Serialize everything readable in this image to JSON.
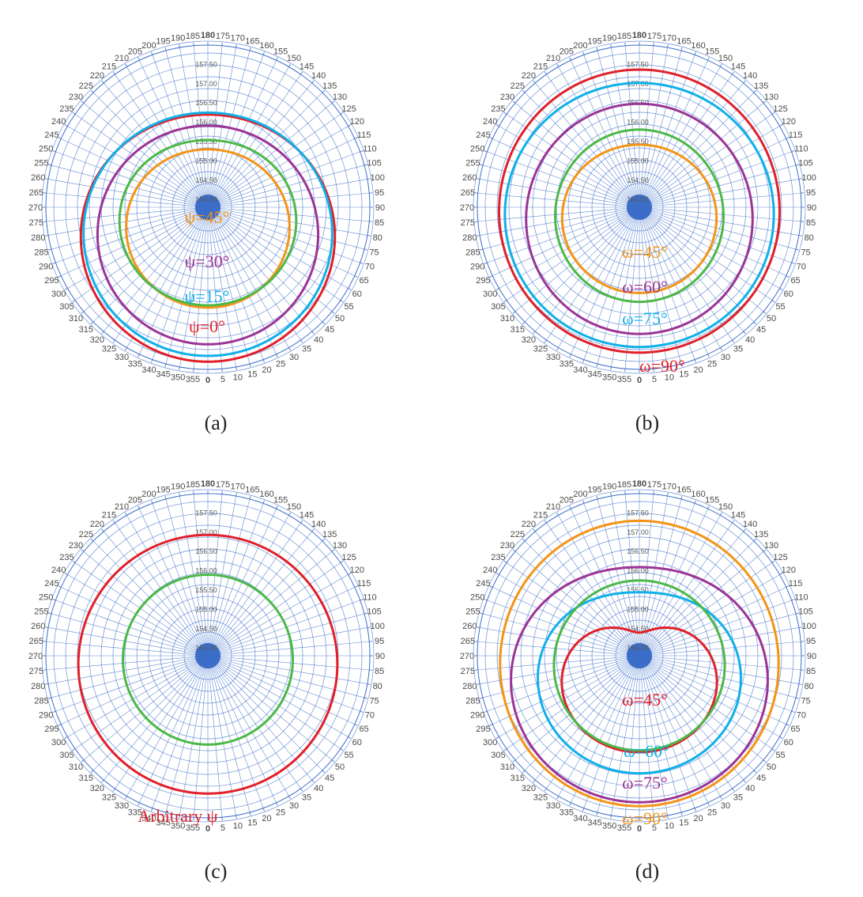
{
  "theta_ticks": [
    "0",
    "5",
    "10",
    "15",
    "20",
    "25",
    "30",
    "35",
    "40",
    "45",
    "50",
    "55",
    "60",
    "65",
    "70",
    "75",
    "80",
    "85",
    "90",
    "95",
    "100",
    "105",
    "110",
    "115",
    "120",
    "125",
    "130",
    "135",
    "140",
    "145",
    "150",
    "155",
    "160",
    "165",
    "170",
    "175",
    "180",
    "185",
    "190",
    "195",
    "200",
    "205",
    "210",
    "215",
    "220",
    "225",
    "230",
    "235",
    "240",
    "245",
    "250",
    "255",
    "260",
    "265",
    "270",
    "275",
    "280",
    "285",
    "290",
    "295",
    "300",
    "305",
    "310",
    "315",
    "320",
    "325",
    "330",
    "335",
    "340",
    "345",
    "350",
    "355"
  ],
  "radial_ticks": [
    "154.00",
    "154.50",
    "155.00",
    "155.50",
    "156.00",
    "156.50",
    "157.00",
    "157.50"
  ],
  "colors": {
    "red": "#e0202a",
    "cyan": "#10b0e8",
    "purple": "#9b3496",
    "orange": "#f39417",
    "green": "#4cb848",
    "grid": "#3c6ec8"
  },
  "chart_data": [
    {
      "panel": "(a)",
      "type": "polar-line",
      "series": [
        {
          "name": "ψ=0°",
          "color": "#e0202a",
          "r0": 157.0,
          "a": 0.8,
          "cx": 0.0
        },
        {
          "name": "ψ=15°",
          "color": "#10b0e8",
          "r0": 156.95,
          "a": 0.7,
          "cx": 0.0
        },
        {
          "name": "ψ=30°",
          "color": "#9b3496",
          "r0": 156.6,
          "a": 0.72,
          "cx": 0.1
        },
        {
          "name": "ψ=45°",
          "color": "#f39417",
          "r0": 155.85,
          "a": 0.55,
          "cx": 0.0
        },
        {
          "name": "",
          "color": "#4cb848",
          "r0": 156.0,
          "a": 0.4,
          "cx": -0.2
        }
      ],
      "annotations": [
        {
          "text": "ψ=45°",
          "color": "#f39417"
        },
        {
          "text": "ψ=30°",
          "color": "#9b3496"
        },
        {
          "text": "ψ=15°",
          "color": "#10b0e8"
        },
        {
          "text": "ψ=0°",
          "color": "#e0202a"
        }
      ]
    },
    {
      "panel": "(b)",
      "type": "polar-line",
      "series": [
        {
          "name": "ω=90°",
          "color": "#e0202a",
          "r0": 157.45,
          "a": 0.1,
          "cx": 0.05
        },
        {
          "name": "ω=75°",
          "color": "#10b0e8",
          "r0": 157.25,
          "a": 0.2,
          "cx": -0.1
        },
        {
          "name": "ω=60°",
          "color": "#9b3496",
          "r0": 156.75,
          "a": 0.3,
          "cx": 0.1
        },
        {
          "name": "ω=45°",
          "color": "#f39417",
          "r0": 155.75,
          "a": 0.3,
          "cx": -0.1
        },
        {
          "name": "",
          "color": "#4cb848",
          "r0": 156.0,
          "a": 0.22,
          "cx": 0.1
        }
      ],
      "annotations": [
        {
          "text": "ω=45°",
          "color": "#f39417"
        },
        {
          "text": "ω=60°",
          "color": "#9b3496"
        },
        {
          "text": "ω=75°",
          "color": "#10b0e8"
        },
        {
          "text": "ω=90°",
          "color": "#e0202a"
        }
      ]
    },
    {
      "panel": "(c)",
      "type": "polar-line",
      "series": [
        {
          "name": "Arbitrary ψ",
          "color": "#e0202a",
          "r0": 157.15,
          "a": 0.22,
          "cx": 0.0
        },
        {
          "name": "",
          "color": "#4cb848",
          "r0": 156.0,
          "a": 0.1,
          "cx": 0.0
        }
      ],
      "annotations": [
        {
          "text": "Arbitrary ψ",
          "color": "#e0202a"
        }
      ]
    },
    {
      "panel": "(d)",
      "type": "polar-line",
      "series": [
        {
          "name": "ω=90°",
          "color": "#f39417",
          "r0": 157.45,
          "a": 0.2,
          "cx": 0.15
        },
        {
          "name": "ω=75°",
          "color": "#9b3496",
          "r0": 156.95,
          "a": 0.75,
          "cx": -0.35
        },
        {
          "name": "ω=60°",
          "color": "#10b0e8",
          "r0": 156.25,
          "a": 0.7,
          "cx": -0.35
        },
        {
          "name": "ω=45°",
          "color": "#e0202a",
          "r0": 155.5,
          "a": 0.95,
          "cx": -0.5
        },
        {
          "name": "",
          "color": "#4cb848",
          "r0": 156.0,
          "a": 0.25,
          "cx": 0.0
        }
      ],
      "annotations": [
        {
          "text": "ω=45°",
          "color": "#e0202a"
        },
        {
          "text": "ω=60°",
          "color": "#10b0e8"
        },
        {
          "text": "ω=75°",
          "color": "#9b3496"
        },
        {
          "text": "ω=90°",
          "color": "#f39417"
        }
      ]
    }
  ]
}
